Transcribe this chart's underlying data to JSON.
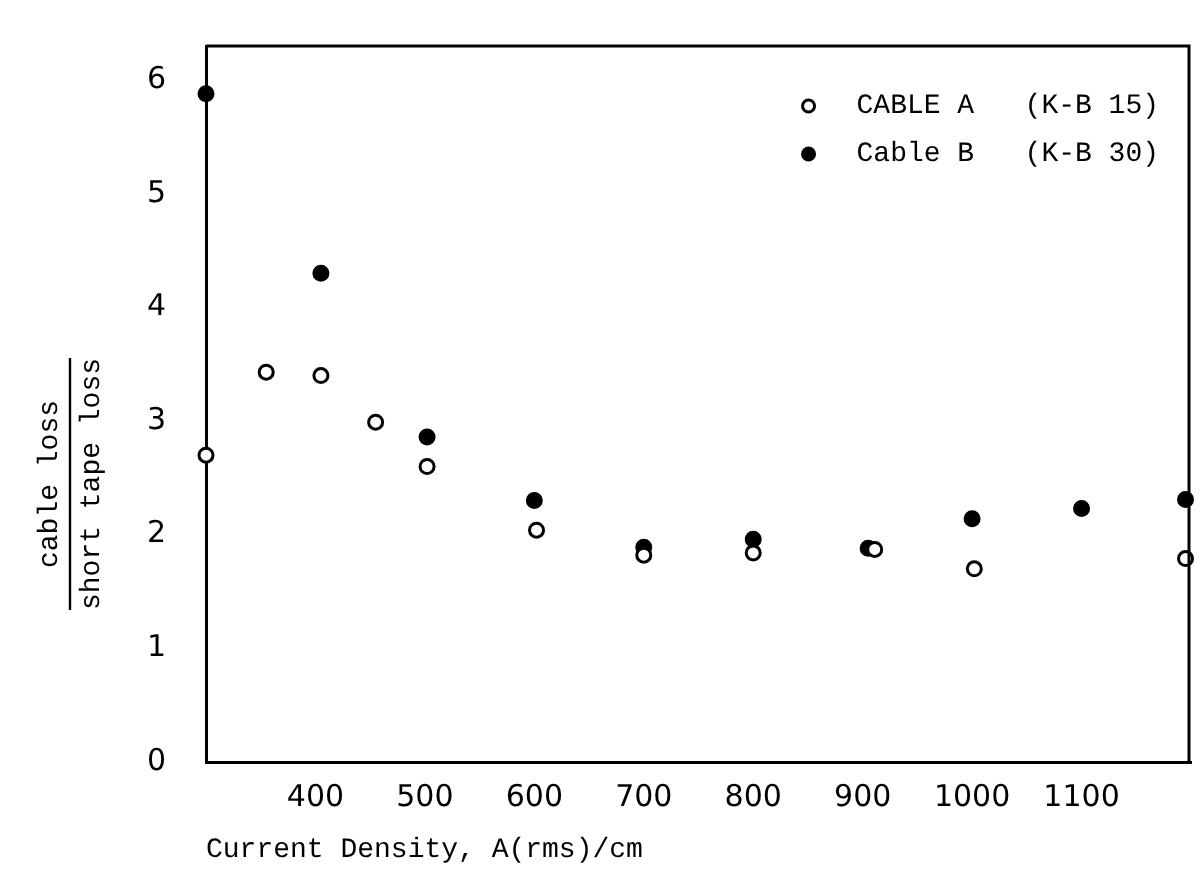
{
  "chart_data": {
    "type": "scatter",
    "xlabel": "Current Density, A(rms)/cm",
    "ylabel": "cable loss\nshort tape loss",
    "xlim": [
      300,
      1200
    ],
    "xticks": [
      400,
      500,
      600,
      700,
      800,
      900,
      1000,
      1100
    ],
    "ylim": [
      0,
      6.3
    ],
    "yticks": [
      0,
      1,
      2,
      3,
      4,
      5,
      6
    ],
    "grid": false,
    "legend": "top right",
    "marker": "circle",
    "series": [
      {
        "name": "CABLE A   (K-B 15)",
        "color": "#000000",
        "x": [
          300,
          355,
          405,
          455,
          502,
          602,
          700,
          800,
          911,
          1002,
          1195
        ],
        "values": [
          2.7,
          3.43,
          3.4,
          2.99,
          2.6,
          2.04,
          1.82,
          1.84,
          1.87,
          1.7,
          1.79
        ]
      },
      {
        "name": "Cable B   (K-B 30)",
        "color": "#000000",
        "x": [
          300,
          405,
          502,
          600,
          700,
          800,
          905,
          1000,
          1100,
          1195
        ],
        "values": [
          5.88,
          4.3,
          2.86,
          2.3,
          1.89,
          1.96,
          1.88,
          2.14,
          2.23,
          2.31
        ]
      }
    ]
  }
}
